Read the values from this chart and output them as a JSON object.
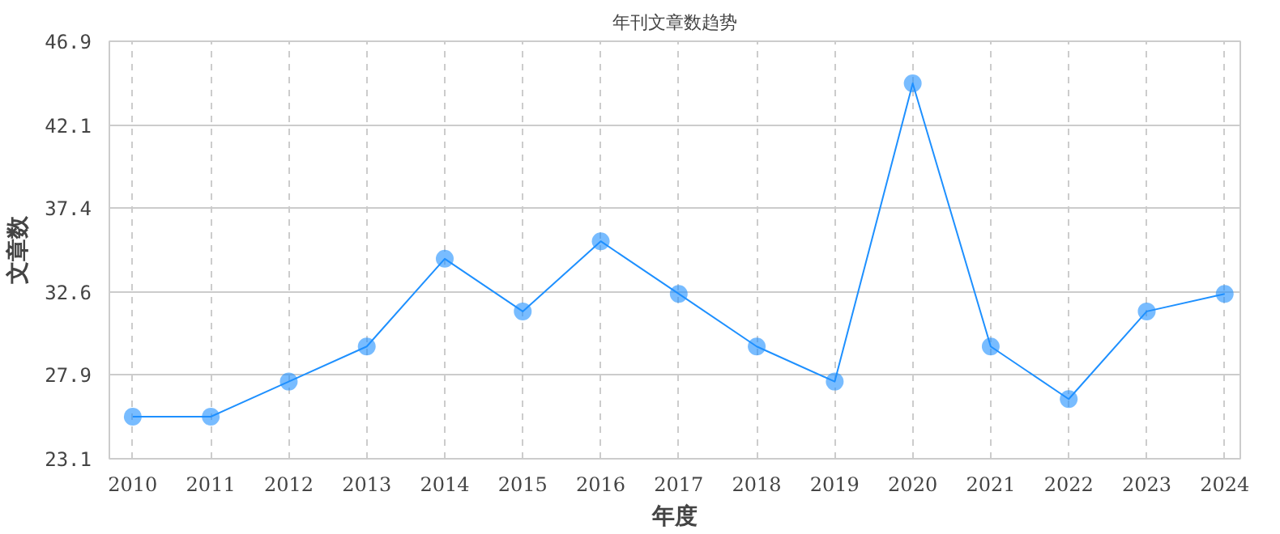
{
  "chart_data": {
    "type": "line",
    "title": "年刊文章数趋势",
    "xlabel": "年度",
    "ylabel": "文章数",
    "categories": [
      "2010",
      "2011",
      "2012",
      "2013",
      "2014",
      "2015",
      "2016",
      "2017",
      "2018",
      "2019",
      "2020",
      "2021",
      "2022",
      "2023",
      "2024"
    ],
    "series": [
      {
        "color": "#1e90ff",
        "values": [
          25.5,
          25.5,
          27.5,
          29.5,
          34.5,
          31.5,
          35.5,
          32.5,
          29.5,
          27.5,
          44.5,
          29.5,
          26.5,
          31.5,
          32.5
        ]
      }
    ],
    "ylim": [
      23.1,
      46.9
    ],
    "yticks": [
      23.1,
      27.9,
      32.6,
      37.4,
      42.1,
      46.9
    ],
    "grid": true,
    "marker": "circle",
    "line_style": "solid"
  }
}
